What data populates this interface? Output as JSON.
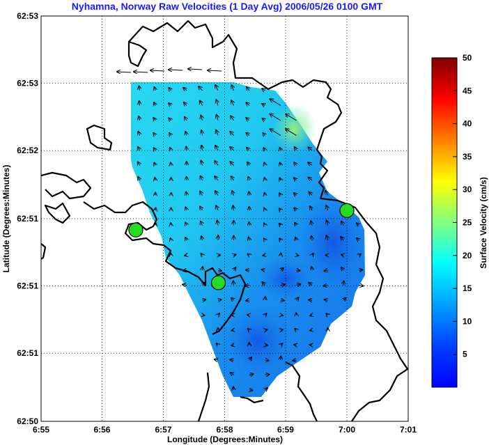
{
  "chart_data": {
    "type": "heatmap",
    "title": "Nyhamna, Norway Raw Velocities (1 Day Avg) 2006/05/26 0100 GMT",
    "xlabel": "Longitude (Degrees:Minutes)",
    "ylabel": "Latitude (Degrees:Minutes)",
    "colorbar_label": "Surface Velocity (cm/s)",
    "grid": true,
    "xlim": [
      6.9167,
      7.0167
    ],
    "ylim": [
      62.8333,
      62.8833
    ],
    "x_ticks": [
      {
        "value": 6.9167,
        "label": "6:55"
      },
      {
        "value": 6.9333,
        "label": "6:56"
      },
      {
        "value": 6.95,
        "label": "6:57"
      },
      {
        "value": 6.9667,
        "label": "6:58"
      },
      {
        "value": 6.9833,
        "label": "6:59"
      },
      {
        "value": 7.0,
        "label": "7:00"
      },
      {
        "value": 7.0167,
        "label": "7:01"
      }
    ],
    "y_ticks": [
      {
        "value": 62.8333,
        "label": "62:50"
      },
      {
        "value": 62.8417,
        "label": "62:51"
      },
      {
        "value": 62.85,
        "label": "62:51"
      },
      {
        "value": 62.8583,
        "label": "62:51"
      },
      {
        "value": 62.8667,
        "label": "62:52"
      },
      {
        "value": 62.875,
        "label": "62:53"
      },
      {
        "value": 62.8833,
        "label": "62:53"
      }
    ],
    "colorbar": {
      "range": [
        0,
        50
      ],
      "ticks": [
        5,
        10,
        15,
        20,
        25,
        30,
        35,
        40,
        45,
        50
      ]
    },
    "colors": {
      "title": "#1a1aff",
      "coast": "#000000",
      "site_marker": "#22dd22",
      "grid": "#000000"
    },
    "radar_sites": [
      {
        "lon": 6.9425,
        "lat": 62.8569
      },
      {
        "lon": 6.965,
        "lat": 62.8504
      },
      {
        "lon": 7.0,
        "lat": 62.8593
      }
    ],
    "velocity_field_summary": {
      "typical_speed_cm_s": [
        4,
        13
      ],
      "max_speed_cm_s": 18,
      "dominant_direction": "northwest"
    }
  }
}
